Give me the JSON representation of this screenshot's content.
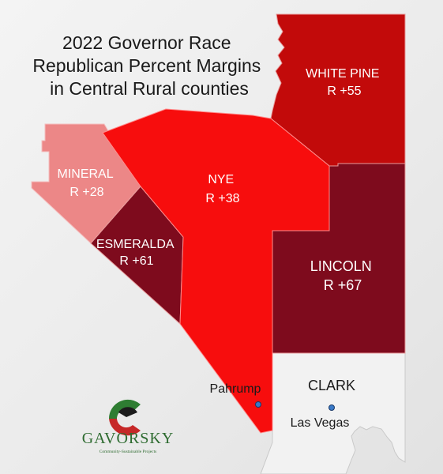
{
  "title": [
    "2022 Governor Race",
    "Republican Percent Margins",
    "in Central Rural counties"
  ],
  "counties": {
    "white_pine": {
      "name": "WHITE PINE",
      "margin": "R +55",
      "color": "#c20a0a"
    },
    "nye": {
      "name": "NYE",
      "margin": "R +38",
      "color": "#f70d0d"
    },
    "mineral": {
      "name": "MINERAL",
      "margin": "R +28",
      "color": "#ec8787"
    },
    "esmeralda": {
      "name": "ESMERALDA",
      "margin": "R +61",
      "color": "#7e0b1d"
    },
    "lincoln": {
      "name": "LINCOLN",
      "margin": "R +67",
      "color": "#7e0b1d"
    },
    "clark": {
      "name": "CLARK",
      "color": "#f2f2f2"
    }
  },
  "cities": {
    "pahrump": {
      "name": "Pahrump"
    },
    "las_vegas": {
      "name": "Las Vegas"
    }
  },
  "logo": {
    "name": "GAVORSKY",
    "tagline": "Community-Sustainable Projects"
  },
  "colors": {
    "city_dot": "#3a7ac8",
    "border": "#f2b6b6"
  }
}
